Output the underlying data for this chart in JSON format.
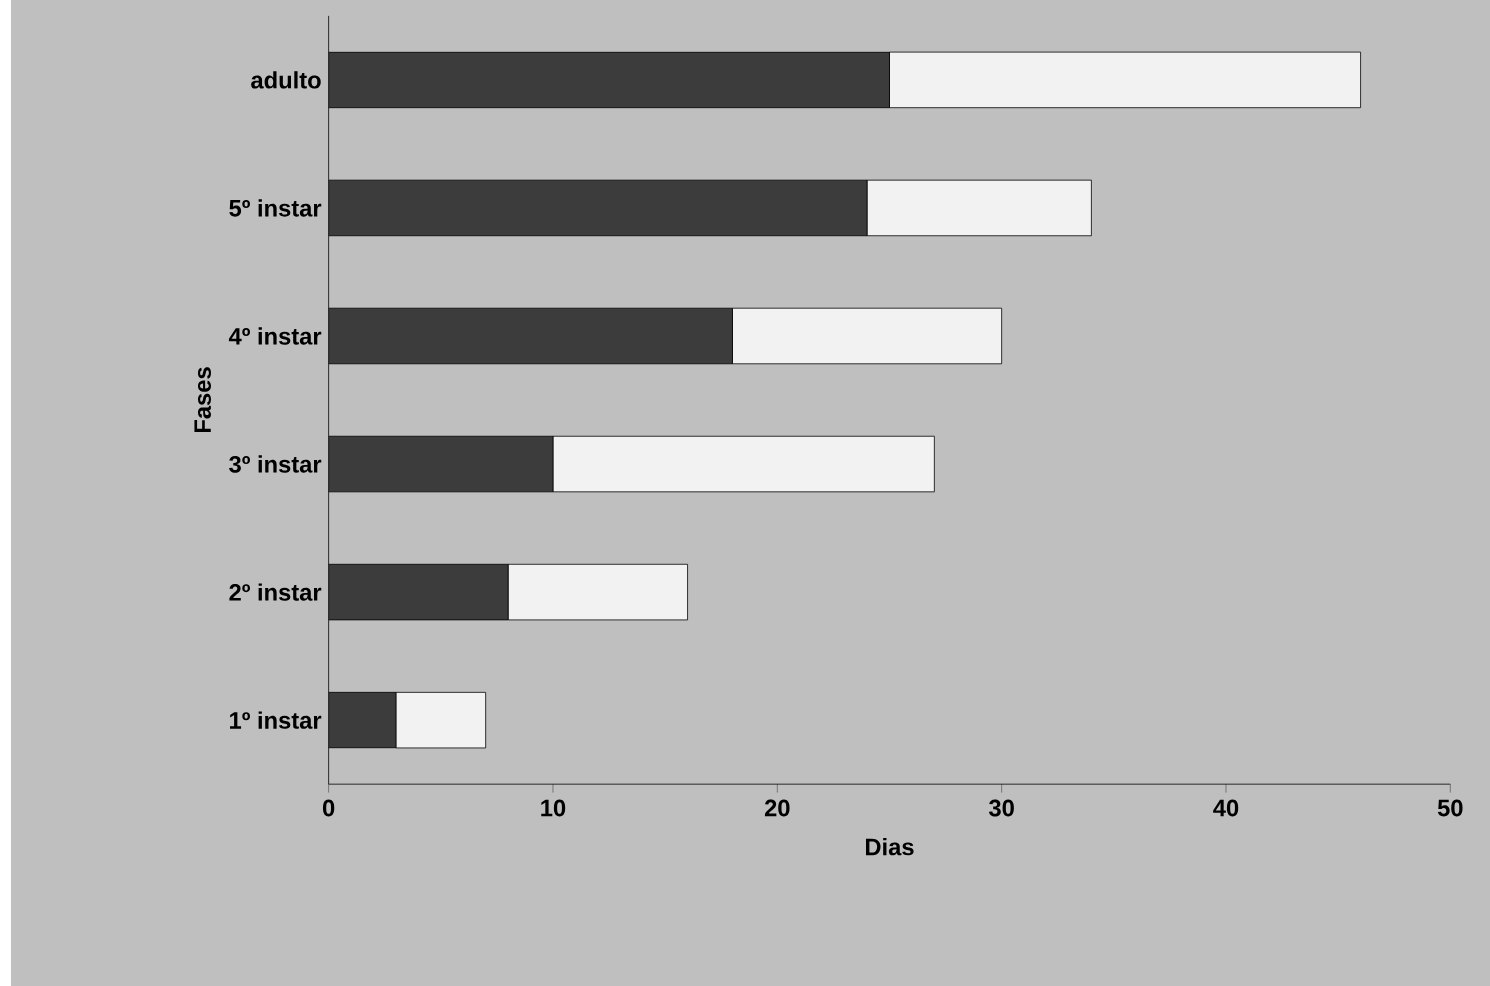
{
  "chart_data": {
    "type": "bar",
    "orientation": "horizontal",
    "stacked": true,
    "xlabel": "Dias",
    "ylabel": "Fases",
    "categories": [
      "adulto",
      "5º instar",
      "4º instar",
      "3º instar",
      "2º instar",
      "1º instar"
    ],
    "series": [
      {
        "color": "#3c3c3c",
        "values": [
          25,
          24,
          18,
          10,
          8,
          3
        ]
      },
      {
        "color": "#f2f2f2",
        "values": [
          21,
          10,
          12,
          17,
          8,
          4
        ]
      }
    ],
    "xlim": [
      0,
      50
    ],
    "xticks": [
      0,
      10,
      20,
      30,
      40,
      50
    ]
  }
}
